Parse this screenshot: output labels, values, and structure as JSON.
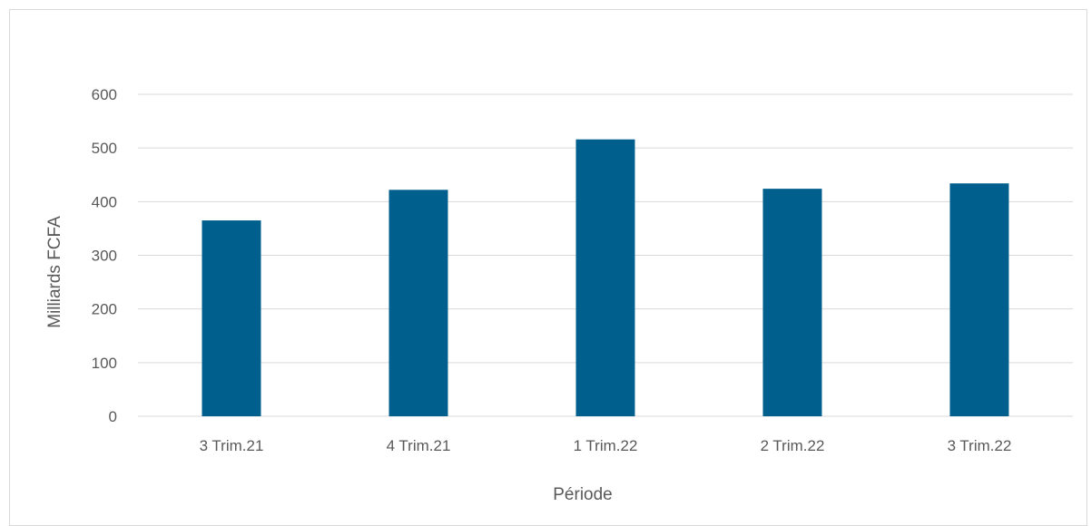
{
  "chart_data": {
    "type": "bar",
    "title": "",
    "xlabel": "Période",
    "ylabel": "Milliards FCFA",
    "categories": [
      "3 Trim.21",
      "4 Trim.21",
      "1 Trim.22",
      "2 Trim.22",
      "3 Trim.22"
    ],
    "values": [
      365,
      422,
      516,
      424,
      434
    ],
    "ylim": [
      0,
      600
    ],
    "yticks": [
      0,
      100,
      200,
      300,
      400,
      500,
      600
    ],
    "grid": true,
    "legend": "none",
    "bar_color": "#005f8c",
    "grid_color": "#d9d9d9"
  }
}
